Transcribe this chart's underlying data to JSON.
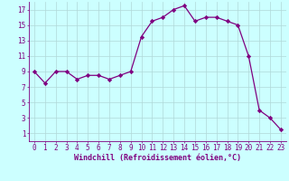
{
  "x": [
    0,
    1,
    2,
    3,
    4,
    5,
    6,
    7,
    8,
    9,
    10,
    11,
    12,
    13,
    14,
    15,
    16,
    17,
    18,
    19,
    20,
    21,
    22,
    23
  ],
  "y": [
    9,
    7.5,
    9,
    9,
    8,
    8.5,
    8.5,
    8,
    8.5,
    9,
    13.5,
    15.5,
    16,
    17,
    17.5,
    15.5,
    16,
    16,
    15.5,
    15,
    11,
    4,
    3,
    1.5
  ],
  "line_color": "#800080",
  "marker": "D",
  "marker_size": 2.2,
  "bg_color": "#ccffff",
  "grid_color": "#b0d8d8",
  "xlabel": "Windchill (Refroidissement éolien,°C)",
  "xlabel_color": "#800080",
  "tick_color": "#800080",
  "ylim": [
    0,
    18
  ],
  "xlim": [
    -0.5,
    23.5
  ],
  "yticks": [
    1,
    3,
    5,
    7,
    9,
    11,
    13,
    15,
    17
  ],
  "xticks": [
    0,
    1,
    2,
    3,
    4,
    5,
    6,
    7,
    8,
    9,
    10,
    11,
    12,
    13,
    14,
    15,
    16,
    17,
    18,
    19,
    20,
    21,
    22,
    23
  ],
  "tick_font_size": 5.5,
  "label_font_size": 6.0,
  "line_width": 0.9
}
